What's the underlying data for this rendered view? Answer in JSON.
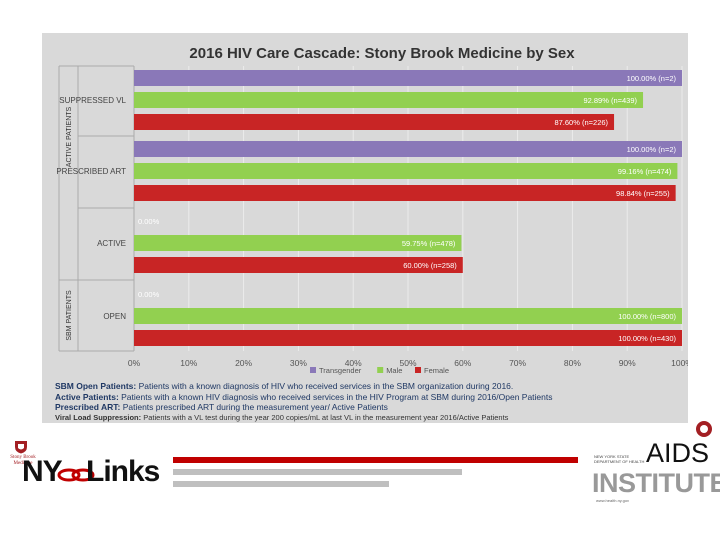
{
  "colors": {
    "transgender": "#8a78b8",
    "male": "#92d050",
    "female": "#c82525",
    "frame_bg": "#d9d9d9",
    "title": "#333333",
    "stripe_red": "#c00000",
    "stripe_gray": "#bfbfbf",
    "brand_red": "#a31f23"
  },
  "chart_data": {
    "type": "bar",
    "orientation": "horizontal",
    "title": "2016 HIV Care Cascade: Stony Brook Medicine by Sex",
    "categories": [
      "SUPPRESSED VL",
      "PRESCRIBED ART",
      "ACTIVE",
      "OPEN"
    ],
    "group_labels": [
      {
        "label": "ACTIVE PATIENTS",
        "categories": [
          "SUPPRESSED VL",
          "PRESCRIBED ART"
        ]
      },
      {
        "label": "SBM PATIENTS",
        "categories": [
          "ACTIVE",
          "OPEN"
        ]
      }
    ],
    "series": [
      {
        "name": "Transgender",
        "color": "#8a78b8",
        "values": [
          100.0,
          100.0,
          0.0,
          0.0
        ],
        "labels": [
          "100.00% (n=2)",
          "100.00% (n=2)",
          "0.00%",
          "0.00%"
        ]
      },
      {
        "name": "Male",
        "color": "#92d050",
        "values": [
          92.89,
          99.16,
          59.75,
          100.0
        ],
        "labels": [
          "92.89% (n=439)",
          "99.16% (n=474)",
          "59.75% (n=478)",
          "100.00% (n=800)"
        ]
      },
      {
        "name": "Female",
        "color": "#c82525",
        "values": [
          87.6,
          98.84,
          60.0,
          100.0
        ],
        "labels": [
          "87.60% (n=226)",
          "98.84% (n=255)",
          "60.00% (n=258)",
          "100.00% (n=430)"
        ]
      }
    ],
    "x_ticks": [
      "0%",
      "10%",
      "20%",
      "30%",
      "40%",
      "50%",
      "60%",
      "70%",
      "80%",
      "90%",
      "100%"
    ],
    "xlim": [
      0,
      100
    ],
    "legend_position": "bottom",
    "grid": true
  },
  "footnotes": [
    {
      "term": "SBM Open Patients:",
      "text": " Patients with a known diagnosis of HIV who received services in the SBM organization during 2016."
    },
    {
      "term": "Active Patients:",
      "text": " Patients with a known HIV diagnosis who received services in the HIV Program at SBM during 2016/Open Patients"
    },
    {
      "term": "Prescribed ART:",
      "text": " Patients prescribed ART during the measurement year/ Active Patients"
    },
    {
      "term": "Viral Load Suppression:",
      "text": " Patients with a VL test during the year 200 copies/mL at last VL in the measurement year 2016/Active Patients"
    }
  ],
  "logos": {
    "stony_brook": "Stony Brook Medicine",
    "nylinks_ny": "NY",
    "nylinks_links": "Links",
    "aids": "AIDS",
    "institute": "INSTITUTE",
    "aids_small": "NEW YORK STATE DEPARTMENT OF HEALTH",
    "aids_sub": "www.health.ny.gov"
  }
}
